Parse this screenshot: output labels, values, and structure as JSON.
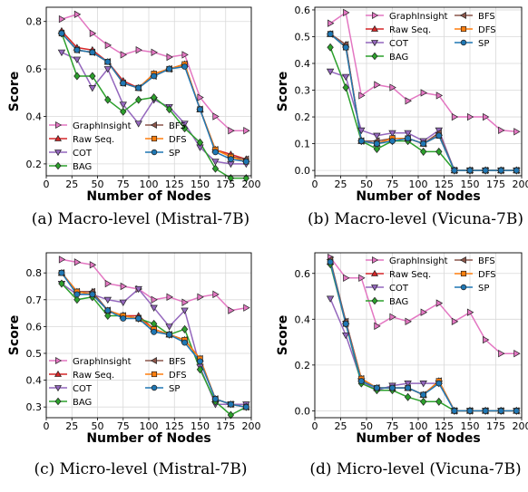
{
  "colors": {
    "GraphInsight": "#e377c2",
    "Raw Seq.": "#d62728",
    "COT": "#9467bd",
    "BAG": "#2ca02c",
    "BFS": "#8c564b",
    "DFS": "#ff7f0e",
    "SP": "#1f77b4"
  },
  "markers": {
    "GraphInsight": "tri-right",
    "Raw Seq.": "tri-up",
    "COT": "tri-down",
    "BAG": "diamond",
    "BFS": "tri-left",
    "DFS": "square",
    "SP": "circle"
  },
  "chart_data": [
    {
      "type": "line",
      "caption": "(a) Macro-level (Mistral-7B)",
      "xlabel": "Number of Nodes",
      "ylabel": "Score",
      "xlim": [
        0,
        200
      ],
      "ylim": [
        0.15,
        0.86
      ],
      "xticks": [
        0,
        25,
        50,
        75,
        100,
        125,
        150,
        175,
        200
      ],
      "yticks": [
        0.2,
        0.4,
        0.6,
        0.8
      ],
      "ytick_labels": [
        "0.2",
        "0.4",
        "0.6",
        "0.8"
      ],
      "grid": true,
      "legend_position": "lower-left",
      "x": [
        15,
        30,
        45,
        60,
        75,
        90,
        105,
        120,
        135,
        150,
        165,
        180,
        195
      ],
      "series": [
        {
          "name": "GraphInsight",
          "values": [
            0.81,
            0.83,
            0.75,
            0.7,
            0.66,
            0.68,
            0.67,
            0.65,
            0.66,
            0.48,
            0.4,
            0.34,
            0.34
          ]
        },
        {
          "name": "Raw Seq.",
          "values": [
            0.76,
            0.69,
            0.68,
            0.63,
            0.55,
            0.52,
            0.58,
            0.6,
            0.62,
            0.43,
            0.26,
            0.24,
            0.22
          ]
        },
        {
          "name": "COT",
          "values": [
            0.67,
            0.64,
            0.52,
            0.6,
            0.45,
            0.37,
            0.47,
            0.44,
            0.37,
            0.27,
            0.21,
            0.2,
            0.2
          ]
        },
        {
          "name": "BAG",
          "values": [
            0.75,
            0.57,
            0.57,
            0.47,
            0.42,
            0.47,
            0.48,
            0.43,
            0.35,
            0.29,
            0.18,
            0.14,
            0.14
          ]
        },
        {
          "name": "BFS",
          "values": [
            0.75,
            0.68,
            0.67,
            0.63,
            0.54,
            0.52,
            0.57,
            0.6,
            0.62,
            0.43,
            0.26,
            0.23,
            0.22
          ]
        },
        {
          "name": "DFS",
          "values": [
            0.75,
            0.68,
            0.67,
            0.63,
            0.54,
            0.52,
            0.58,
            0.6,
            0.62,
            0.43,
            0.26,
            0.23,
            0.21
          ]
        },
        {
          "name": "SP",
          "values": [
            0.75,
            0.68,
            0.67,
            0.63,
            0.54,
            0.52,
            0.57,
            0.6,
            0.61,
            0.43,
            0.25,
            0.22,
            0.21
          ]
        }
      ]
    },
    {
      "type": "line",
      "caption": "(b) Macro-level (Vicuna-7B)",
      "xlabel": "Number of Nodes",
      "ylabel": "Score",
      "xlim": [
        0,
        200
      ],
      "ylim": [
        -0.02,
        0.61
      ],
      "xticks": [
        0,
        25,
        50,
        75,
        100,
        125,
        150,
        175,
        200
      ],
      "yticks": [
        0.0,
        0.1,
        0.2,
        0.3,
        0.4,
        0.5,
        0.6
      ],
      "ytick_labels": [
        "0.0",
        "0.1",
        "0.2",
        "0.3",
        "0.4",
        "0.5",
        "0.6"
      ],
      "grid": true,
      "legend_position": "upper-right",
      "x": [
        15,
        30,
        45,
        60,
        75,
        90,
        105,
        120,
        135,
        150,
        165,
        180,
        195
      ],
      "series": [
        {
          "name": "GraphInsight",
          "values": [
            0.55,
            0.59,
            0.28,
            0.32,
            0.31,
            0.26,
            0.29,
            0.28,
            0.2,
            0.2,
            0.2,
            0.15,
            0.145
          ]
        },
        {
          "name": "Raw Seq.",
          "values": [
            0.51,
            0.47,
            0.11,
            0.1,
            0.12,
            0.12,
            0.1,
            0.14,
            0.0,
            0.0,
            0.0,
            0.0,
            0.0
          ]
        },
        {
          "name": "COT",
          "values": [
            0.37,
            0.35,
            0.15,
            0.13,
            0.14,
            0.14,
            0.11,
            0.15,
            0.0,
            0.0,
            0.0,
            0.0,
            0.0
          ]
        },
        {
          "name": "BAG",
          "values": [
            0.46,
            0.31,
            0.11,
            0.08,
            0.11,
            0.11,
            0.07,
            0.07,
            0.0,
            0.0,
            0.0,
            0.0,
            0.0
          ]
        },
        {
          "name": "BFS",
          "values": [
            0.51,
            0.47,
            0.11,
            0.11,
            0.12,
            0.12,
            0.1,
            0.14,
            0.0,
            0.0,
            0.0,
            0.0,
            0.0
          ]
        },
        {
          "name": "DFS",
          "values": [
            0.51,
            0.46,
            0.11,
            0.1,
            0.12,
            0.12,
            0.1,
            0.13,
            0.0,
            0.0,
            0.0,
            0.0,
            0.0
          ]
        },
        {
          "name": "SP",
          "values": [
            0.51,
            0.46,
            0.11,
            0.1,
            0.11,
            0.12,
            0.1,
            0.13,
            0.0,
            0.0,
            0.0,
            0.0,
            0.0
          ]
        }
      ]
    },
    {
      "type": "line",
      "caption": "(c) Micro-level (Mistral-7B)",
      "xlabel": "Number of Nodes",
      "ylabel": "Score",
      "xlim": [
        0,
        200
      ],
      "ylim": [
        0.26,
        0.875
      ],
      "xticks": [
        0,
        25,
        50,
        75,
        100,
        125,
        150,
        175,
        200
      ],
      "yticks": [
        0.3,
        0.4,
        0.5,
        0.6,
        0.7,
        0.8
      ],
      "ytick_labels": [
        "0.3",
        "0.4",
        "0.5",
        "0.6",
        "0.7",
        "0.8"
      ],
      "grid": true,
      "legend_position": "lower-left",
      "x": [
        15,
        30,
        45,
        60,
        75,
        90,
        105,
        120,
        135,
        150,
        165,
        180,
        195
      ],
      "series": [
        {
          "name": "GraphInsight",
          "values": [
            0.85,
            0.84,
            0.83,
            0.76,
            0.75,
            0.74,
            0.7,
            0.71,
            0.69,
            0.71,
            0.72,
            0.66,
            0.67
          ]
        },
        {
          "name": "Raw Seq.",
          "values": [
            0.8,
            0.73,
            0.73,
            0.66,
            0.64,
            0.64,
            0.59,
            0.57,
            0.55,
            0.48,
            0.33,
            0.31,
            0.3
          ]
        },
        {
          "name": "COT",
          "values": [
            0.76,
            0.72,
            0.72,
            0.7,
            0.69,
            0.74,
            0.67,
            0.6,
            0.66,
            0.45,
            0.31,
            0.31,
            0.31
          ]
        },
        {
          "name": "BAG",
          "values": [
            0.76,
            0.7,
            0.71,
            0.64,
            0.64,
            0.63,
            0.61,
            0.57,
            0.59,
            0.44,
            0.32,
            0.27,
            0.3
          ]
        },
        {
          "name": "BFS",
          "values": [
            0.8,
            0.73,
            0.73,
            0.66,
            0.64,
            0.63,
            0.59,
            0.57,
            0.55,
            0.48,
            0.33,
            0.31,
            0.3
          ]
        },
        {
          "name": "DFS",
          "values": [
            0.8,
            0.73,
            0.72,
            0.66,
            0.64,
            0.63,
            0.59,
            0.57,
            0.55,
            0.48,
            0.33,
            0.31,
            0.3
          ]
        },
        {
          "name": "SP",
          "values": [
            0.8,
            0.72,
            0.72,
            0.66,
            0.63,
            0.63,
            0.58,
            0.57,
            0.54,
            0.47,
            0.33,
            0.31,
            0.3
          ]
        }
      ]
    },
    {
      "type": "line",
      "caption": "(d) Micro-level (Vicuna-7B)",
      "xlabel": "Number of Nodes",
      "ylabel": "Score",
      "xlim": [
        0,
        200
      ],
      "ylim": [
        -0.03,
        0.69
      ],
      "xticks": [
        0,
        25,
        50,
        75,
        100,
        125,
        150,
        175,
        200
      ],
      "yticks": [
        0.0,
        0.2,
        0.4,
        0.6
      ],
      "ytick_labels": [
        "0.0",
        "0.2",
        "0.4",
        "0.6"
      ],
      "grid": true,
      "legend_position": "upper-right",
      "x": [
        15,
        30,
        45,
        60,
        75,
        90,
        105,
        120,
        135,
        150,
        165,
        180,
        195
      ],
      "series": [
        {
          "name": "GraphInsight",
          "values": [
            0.67,
            0.58,
            0.58,
            0.37,
            0.41,
            0.39,
            0.43,
            0.47,
            0.39,
            0.43,
            0.31,
            0.25,
            0.25
          ]
        },
        {
          "name": "Raw Seq.",
          "values": [
            0.65,
            0.39,
            0.14,
            0.1,
            0.1,
            0.1,
            0.07,
            0.13,
            0.0,
            0.0,
            0.0,
            0.0,
            0.0
          ]
        },
        {
          "name": "COT",
          "values": [
            0.49,
            0.33,
            0.13,
            0.09,
            0.11,
            0.12,
            0.12,
            0.12,
            0.0,
            0.0,
            0.0,
            0.0,
            0.0
          ]
        },
        {
          "name": "BAG",
          "values": [
            0.64,
            0.38,
            0.12,
            0.09,
            0.09,
            0.06,
            0.04,
            0.04,
            0.0,
            0.0,
            0.0,
            0.0,
            0.0
          ]
        },
        {
          "name": "BFS",
          "values": [
            0.66,
            0.39,
            0.14,
            0.1,
            0.1,
            0.1,
            0.07,
            0.13,
            0.0,
            0.0,
            0.0,
            0.0,
            0.0
          ]
        },
        {
          "name": "DFS",
          "values": [
            0.65,
            0.38,
            0.14,
            0.1,
            0.1,
            0.1,
            0.07,
            0.13,
            0.0,
            0.0,
            0.0,
            0.0,
            0.0
          ]
        },
        {
          "name": "SP",
          "values": [
            0.65,
            0.38,
            0.13,
            0.1,
            0.1,
            0.1,
            0.07,
            0.12,
            0.0,
            0.0,
            0.0,
            0.0,
            0.0
          ]
        }
      ]
    }
  ]
}
